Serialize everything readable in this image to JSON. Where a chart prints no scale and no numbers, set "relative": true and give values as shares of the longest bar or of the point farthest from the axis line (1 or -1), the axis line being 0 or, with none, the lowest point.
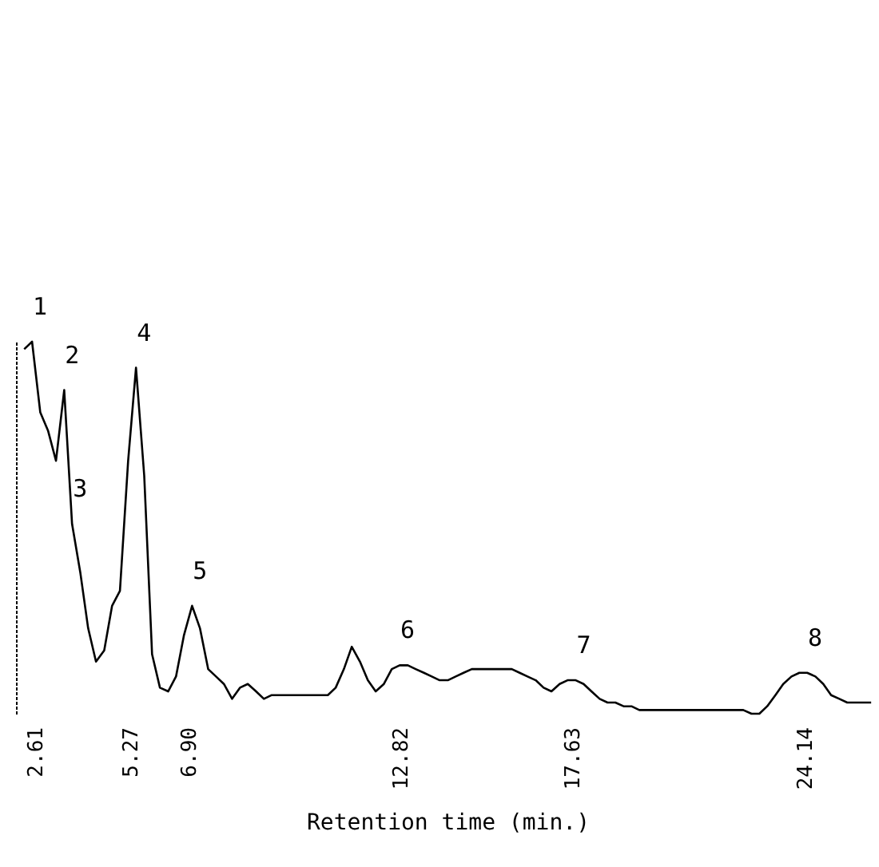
{
  "chart_data": {
    "type": "line",
    "relative": true,
    "xlabel": "Retention time (min.)",
    "xlim": [
      2.07,
      26.23
    ],
    "xticks": [
      2.61,
      5.27,
      {
        "value": 6.9,
        "label": "6.90"
      },
      12.82,
      17.63,
      24.14
    ],
    "series": [
      {
        "color": "#000000",
        "x": [
          2.3,
          2.52,
          2.75,
          2.97,
          3.19,
          3.42,
          3.64,
          3.87,
          4.09,
          4.31,
          4.54,
          4.76,
          4.98,
          5.21,
          5.43,
          5.66,
          5.88,
          6.1,
          6.33,
          6.55,
          6.77,
          7.0,
          7.22,
          7.45,
          7.67,
          7.89,
          8.12,
          8.34,
          8.56,
          8.79,
          9.01,
          9.23,
          9.46,
          9.68,
          9.91,
          10.13,
          10.35,
          10.58,
          10.8,
          11.02,
          11.25,
          11.47,
          11.7,
          11.92,
          12.14,
          12.37,
          12.59,
          12.81,
          13.04,
          13.26,
          13.49,
          13.71,
          13.93,
          14.16,
          14.38,
          14.6,
          14.83,
          15.05,
          15.27,
          15.5,
          15.72,
          15.95,
          16.17,
          16.39,
          16.62,
          16.84,
          17.06,
          17.29,
          17.51,
          17.74,
          17.96,
          18.18,
          18.41,
          18.63,
          18.85,
          19.08,
          19.3,
          19.52,
          19.75,
          19.97,
          20.2,
          20.42,
          20.64,
          20.87,
          21.09,
          21.31,
          21.54,
          21.76,
          21.99,
          22.21,
          22.43,
          22.66,
          22.88,
          23.1,
          23.33,
          23.55,
          23.78,
          24.0,
          24.22,
          24.45,
          24.67,
          24.89,
          25.12,
          25.34,
          25.56,
          25.79,
          26.01
        ],
        "values": [
          0.98,
          1.0,
          0.81,
          0.76,
          0.68,
          0.87,
          0.51,
          0.38,
          0.23,
          0.14,
          0.17,
          0.29,
          0.33,
          0.68,
          0.93,
          0.64,
          0.16,
          0.07,
          0.06,
          0.1,
          0.21,
          0.29,
          0.23,
          0.12,
          0.1,
          0.08,
          0.04,
          0.07,
          0.08,
          0.06,
          0.04,
          0.05,
          0.05,
          0.05,
          0.05,
          0.05,
          0.05,
          0.05,
          0.05,
          0.07,
          0.12,
          0.18,
          0.14,
          0.09,
          0.06,
          0.08,
          0.12,
          0.13,
          0.13,
          0.12,
          0.11,
          0.1,
          0.09,
          0.09,
          0.1,
          0.11,
          0.12,
          0.12,
          0.12,
          0.12,
          0.12,
          0.12,
          0.11,
          0.1,
          0.09,
          0.07,
          0.06,
          0.08,
          0.09,
          0.09,
          0.08,
          0.06,
          0.04,
          0.03,
          0.03,
          0.02,
          0.02,
          0.01,
          0.01,
          0.01,
          0.01,
          0.01,
          0.01,
          0.01,
          0.01,
          0.01,
          0.01,
          0.01,
          0.01,
          0.01,
          0.01,
          0.0,
          0.0,
          0.02,
          0.05,
          0.08,
          0.1,
          0.11,
          0.11,
          0.1,
          0.08,
          0.05,
          0.04,
          0.03,
          0.03,
          0.03,
          0.03
        ]
      }
    ],
    "annotations": [
      {
        "text": "1",
        "x": 2.52,
        "y": 1.0
      },
      {
        "text": "2",
        "x": 3.42,
        "y": 0.87
      },
      {
        "text": "3",
        "x": 3.64,
        "y": 0.51
      },
      {
        "text": "4",
        "x": 5.43,
        "y": 0.93
      },
      {
        "text": "5",
        "x": 7.0,
        "y": 0.29
      },
      {
        "text": "6",
        "x": 12.81,
        "y": 0.13
      },
      {
        "text": "7",
        "x": 17.74,
        "y": 0.09
      },
      {
        "text": "8",
        "x": 24.22,
        "y": 0.11
      }
    ],
    "grid": false
  }
}
